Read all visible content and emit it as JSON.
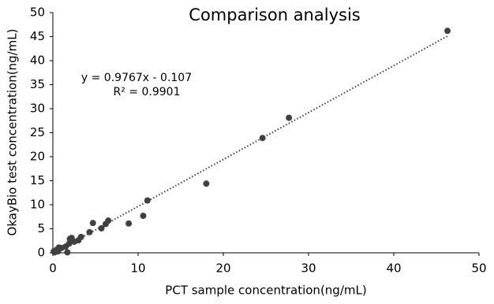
{
  "chart_data": {
    "type": "scatter",
    "title": "Comparison analysis",
    "x_label": "PCT sample concentration(ng/mL)",
    "y_label": "OkayBio test concentration(ng/mL)",
    "annotations": [
      "y = 0.9767x - 0.107",
      "R² = 0.9901"
    ],
    "trendline": {
      "slope": 0.9767,
      "intercept": -0.107
    },
    "color": "#404040",
    "x": [
      46.3,
      27.7,
      24.6,
      18.0,
      11.1,
      10.6,
      8.9,
      6.5,
      6.2,
      5.7,
      4.7,
      4.3,
      3.3,
      3.0,
      2.5,
      2.2,
      2.0,
      1.9,
      1.5,
      1.7,
      1.0,
      0.7,
      0.5,
      0.3,
      0.2,
      0.1,
      0.4,
      0.6
    ],
    "values": [
      46.2,
      28.1,
      23.9,
      14.4,
      10.9,
      7.7,
      6.1,
      6.7,
      6.0,
      5.1,
      6.2,
      4.3,
      3.3,
      2.6,
      2.3,
      3.1,
      2.9,
      1.9,
      1.3,
      0.1,
      1.0,
      1.1,
      0.4,
      0.2,
      0.1,
      0.3,
      0.6,
      0.3
    ],
    "xlim": [
      0,
      50
    ],
    "xticks": [
      0,
      10,
      20,
      30,
      40,
      50
    ],
    "ylim": [
      0,
      50
    ],
    "yticks": [
      0,
      5,
      10,
      15,
      20,
      25,
      30,
      35,
      40,
      45,
      50
    ],
    "grid": false
  }
}
